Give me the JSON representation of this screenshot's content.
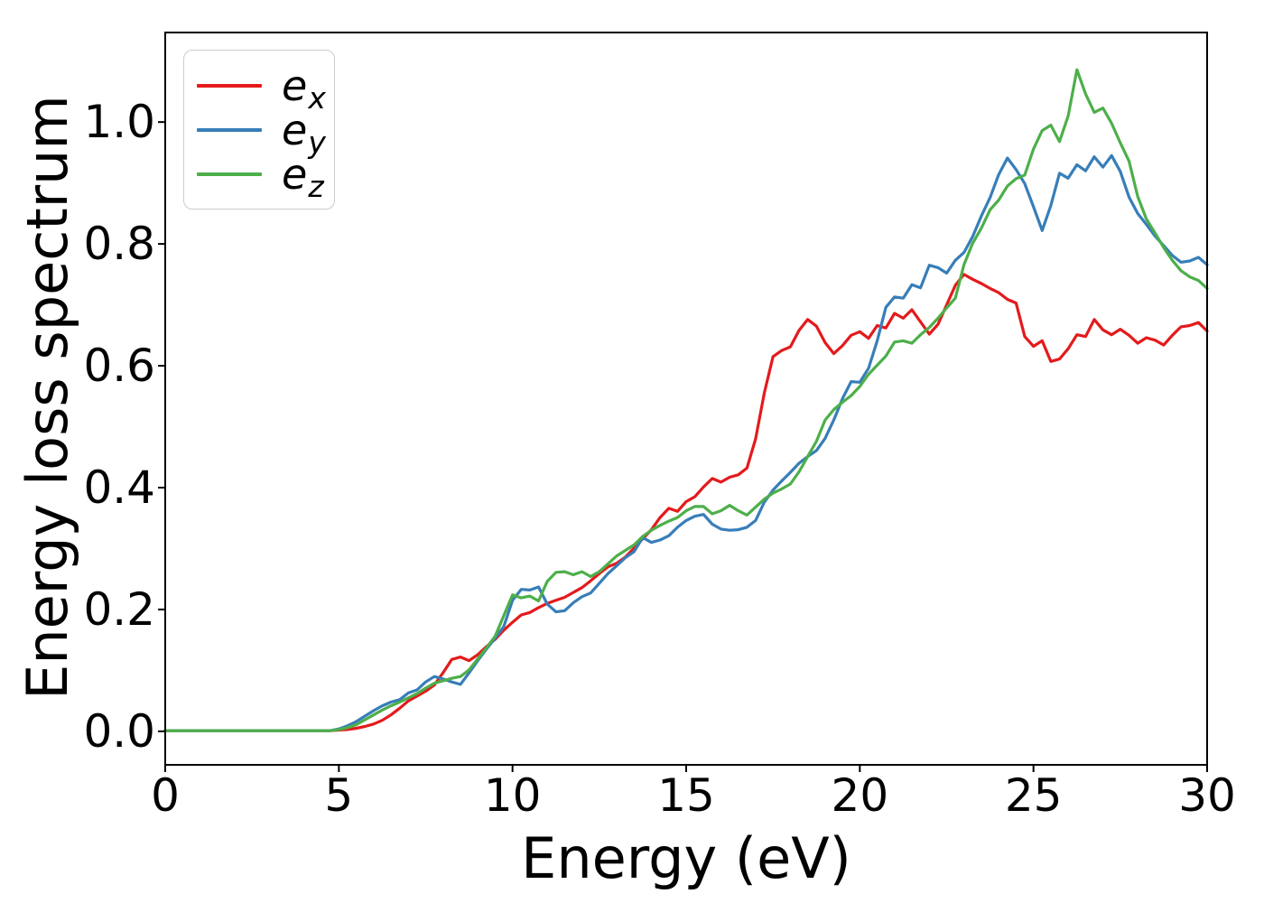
{
  "chart_data": {
    "type": "line",
    "title": "",
    "xlabel": "Energy (eV)",
    "ylabel": "Energy loss spectrum",
    "xlim": [
      0,
      30
    ],
    "ylim": [
      -0.055,
      1.147
    ],
    "grid": false,
    "legend_position": "upper-left",
    "axis_color": "#000000",
    "xticks": {
      "values": [
        0,
        5,
        10,
        15,
        20,
        25,
        30
      ],
      "labels": [
        "0",
        "5",
        "10",
        "15",
        "20",
        "25",
        "30"
      ]
    },
    "yticks": {
      "values": [
        0.0,
        0.2,
        0.4,
        0.6,
        0.8,
        1.0
      ],
      "labels": [
        "0.0",
        "0.2",
        "0.4",
        "0.6",
        "0.8",
        "1.0"
      ]
    },
    "x_start": 0,
    "x_step": 0.25,
    "series": [
      {
        "name": "e_x",
        "label_base": "e",
        "label_sub": "x",
        "color": "#e41a1c",
        "values": [
          0.001,
          0.001,
          0.001,
          0.001,
          0.001,
          0.001,
          0.001,
          0.001,
          0.001,
          0.001,
          0.001,
          0.001,
          0.001,
          0.001,
          0.001,
          0.001,
          0.001,
          0.001,
          0.001,
          0.001,
          0.002,
          0.003,
          0.005,
          0.008,
          0.012,
          0.018,
          0.027,
          0.038,
          0.05,
          0.058,
          0.066,
          0.076,
          0.096,
          0.118,
          0.122,
          0.116,
          0.126,
          0.139,
          0.151,
          0.166,
          0.179,
          0.191,
          0.195,
          0.203,
          0.21,
          0.215,
          0.22,
          0.228,
          0.236,
          0.247,
          0.259,
          0.27,
          0.276,
          0.286,
          0.301,
          0.316,
          0.331,
          0.351,
          0.366,
          0.361,
          0.377,
          0.385,
          0.401,
          0.415,
          0.409,
          0.417,
          0.421,
          0.432,
          0.48,
          0.555,
          0.615,
          0.625,
          0.631,
          0.658,
          0.676,
          0.665,
          0.638,
          0.62,
          0.633,
          0.65,
          0.656,
          0.645,
          0.666,
          0.662,
          0.686,
          0.678,
          0.692,
          0.672,
          0.652,
          0.668,
          0.7,
          0.732,
          0.75,
          0.742,
          0.735,
          0.727,
          0.72,
          0.709,
          0.703,
          0.648,
          0.632,
          0.641,
          0.607,
          0.611,
          0.628,
          0.651,
          0.648,
          0.676,
          0.659,
          0.651,
          0.66,
          0.65,
          0.637,
          0.646,
          0.642,
          0.634,
          0.65,
          0.664,
          0.666,
          0.671,
          0.657
        ]
      },
      {
        "name": "e_y",
        "label_base": "e",
        "label_sub": "y",
        "color": "#377eb8",
        "values": [
          0.001,
          0.001,
          0.001,
          0.001,
          0.001,
          0.001,
          0.001,
          0.001,
          0.001,
          0.001,
          0.001,
          0.001,
          0.001,
          0.001,
          0.001,
          0.001,
          0.001,
          0.001,
          0.001,
          0.001,
          0.004,
          0.009,
          0.016,
          0.025,
          0.034,
          0.042,
          0.048,
          0.052,
          0.063,
          0.068,
          0.081,
          0.09,
          0.086,
          0.081,
          0.077,
          0.096,
          0.116,
          0.135,
          0.153,
          0.172,
          0.215,
          0.233,
          0.232,
          0.237,
          0.209,
          0.196,
          0.198,
          0.211,
          0.221,
          0.227,
          0.243,
          0.259,
          0.272,
          0.285,
          0.295,
          0.318,
          0.31,
          0.314,
          0.321,
          0.335,
          0.346,
          0.353,
          0.356,
          0.34,
          0.332,
          0.33,
          0.331,
          0.335,
          0.346,
          0.376,
          0.396,
          0.411,
          0.425,
          0.44,
          0.451,
          0.461,
          0.481,
          0.511,
          0.546,
          0.574,
          0.573,
          0.596,
          0.641,
          0.696,
          0.713,
          0.711,
          0.733,
          0.728,
          0.765,
          0.761,
          0.752,
          0.773,
          0.786,
          0.812,
          0.846,
          0.876,
          0.914,
          0.941,
          0.922,
          0.899,
          0.861,
          0.822,
          0.863,
          0.916,
          0.908,
          0.93,
          0.92,
          0.943,
          0.926,
          0.945,
          0.919,
          0.877,
          0.85,
          0.832,
          0.813,
          0.797,
          0.781,
          0.77,
          0.772,
          0.778,
          0.766
        ]
      },
      {
        "name": "e_z",
        "label_base": "e",
        "label_sub": "z",
        "color": "#4daf4a",
        "values": [
          0.001,
          0.001,
          0.001,
          0.001,
          0.001,
          0.001,
          0.001,
          0.001,
          0.001,
          0.001,
          0.001,
          0.001,
          0.001,
          0.001,
          0.001,
          0.001,
          0.001,
          0.001,
          0.001,
          0.001,
          0.003,
          0.006,
          0.011,
          0.019,
          0.027,
          0.035,
          0.042,
          0.048,
          0.055,
          0.062,
          0.071,
          0.079,
          0.083,
          0.087,
          0.09,
          0.101,
          0.119,
          0.137,
          0.156,
          0.19,
          0.224,
          0.219,
          0.222,
          0.214,
          0.246,
          0.261,
          0.262,
          0.257,
          0.262,
          0.254,
          0.262,
          0.275,
          0.288,
          0.297,
          0.306,
          0.32,
          0.33,
          0.338,
          0.345,
          0.351,
          0.362,
          0.369,
          0.369,
          0.357,
          0.362,
          0.371,
          0.362,
          0.355,
          0.368,
          0.381,
          0.391,
          0.398,
          0.406,
          0.426,
          0.451,
          0.476,
          0.511,
          0.528,
          0.54,
          0.551,
          0.566,
          0.586,
          0.601,
          0.616,
          0.639,
          0.641,
          0.637,
          0.651,
          0.663,
          0.678,
          0.695,
          0.711,
          0.766,
          0.801,
          0.826,
          0.856,
          0.872,
          0.895,
          0.907,
          0.913,
          0.956,
          0.986,
          0.995,
          0.968,
          1.01,
          1.086,
          1.046,
          1.016,
          1.023,
          0.998,
          0.966,
          0.936,
          0.878,
          0.841,
          0.818,
          0.794,
          0.773,
          0.756,
          0.746,
          0.74,
          0.727
        ]
      }
    ]
  }
}
